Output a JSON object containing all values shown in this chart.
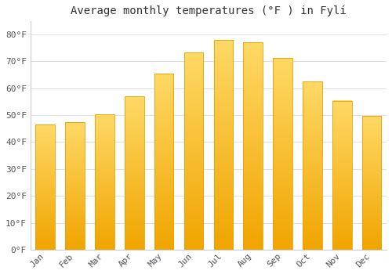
{
  "title": "Average monthly temperatures (°F ) in Fylí",
  "months": [
    "Jan",
    "Feb",
    "Mar",
    "Apr",
    "May",
    "Jun",
    "Jul",
    "Aug",
    "Sep",
    "Oct",
    "Nov",
    "Dec"
  ],
  "values": [
    46.4,
    47.3,
    50.2,
    57.0,
    65.3,
    73.2,
    77.9,
    77.1,
    71.2,
    62.4,
    55.4,
    49.6
  ],
  "bar_color_top": "#FFD966",
  "bar_color_bottom": "#F0A500",
  "bar_edge_color": "#E8A000",
  "background_color": "#ffffff",
  "plot_bg_color": "#ffffff",
  "grid_color": "#e0e0e0",
  "title_fontsize": 10,
  "tick_fontsize": 8,
  "ytick_labels": [
    "0°F",
    "10°F",
    "20°F",
    "30°F",
    "40°F",
    "50°F",
    "60°F",
    "70°F",
    "80°F"
  ],
  "ytick_values": [
    0,
    10,
    20,
    30,
    40,
    50,
    60,
    70,
    80
  ],
  "ylim": [
    0,
    85
  ],
  "bar_width": 0.65,
  "font_family": "monospace"
}
